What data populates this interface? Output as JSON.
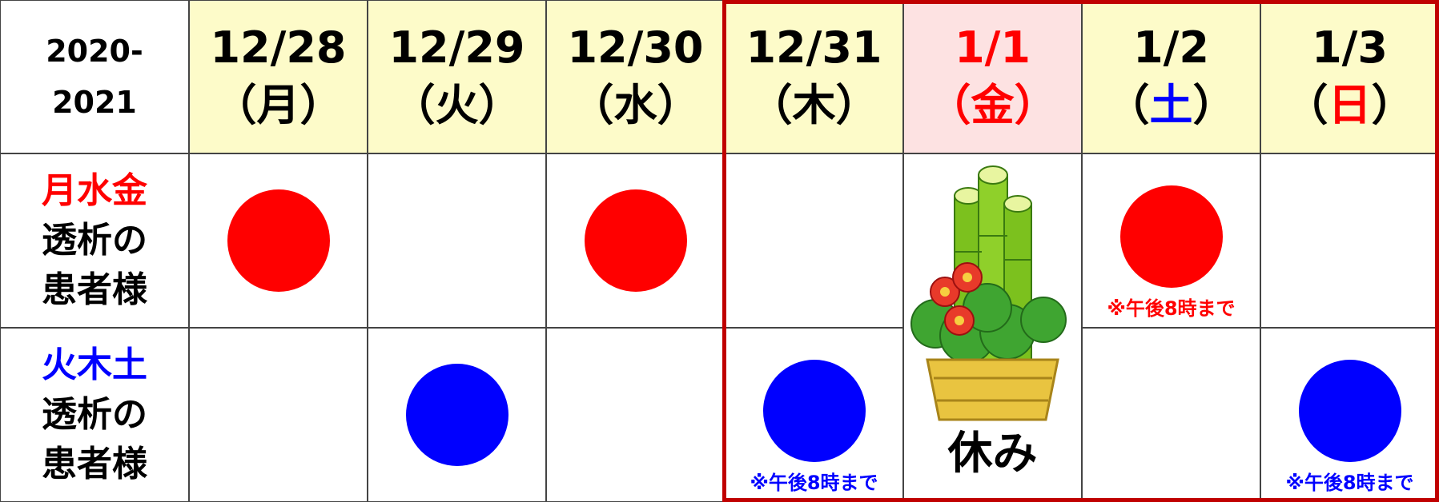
{
  "header": {
    "corner": [
      "2020-",
      "2021"
    ]
  },
  "columns": [
    {
      "date": "12/28",
      "weekday": "（月）",
      "background": "#fdfbc9",
      "date_color": "#000000",
      "weekday_color": "#000000",
      "highlight": false,
      "closed": false
    },
    {
      "date": "12/29",
      "weekday": "（火）",
      "background": "#fdfbc9",
      "date_color": "#000000",
      "weekday_color": "#000000",
      "highlight": false,
      "closed": false
    },
    {
      "date": "12/30",
      "weekday": "（水）",
      "background": "#fdfbc9",
      "date_color": "#000000",
      "weekday_color": "#000000",
      "highlight": false,
      "closed": false
    },
    {
      "date": "12/31",
      "weekday": "（木）",
      "background": "#fdfbc9",
      "date_color": "#000000",
      "weekday_color": "#000000",
      "highlight": true,
      "closed": false
    },
    {
      "date": "1/1",
      "weekday": "（金）",
      "background": "#fde2e2",
      "date_color": "#ff0000",
      "weekday_color": "#ff0000",
      "highlight": true,
      "closed": true
    },
    {
      "date": "1/2",
      "weekday": "（土）",
      "background": "#fdfbc9",
      "date_color": "#000000",
      "weekday_color": "#0000ff",
      "highlight": true,
      "closed": false
    },
    {
      "date": "1/3",
      "weekday": "（日）",
      "background": "#fdfbc9",
      "date_color": "#000000",
      "weekday_color": "#ff0000",
      "highlight": true,
      "closed": false
    }
  ],
  "rows": [
    {
      "label": [
        "月水金",
        "透析の",
        "患者様"
      ],
      "color": "#ff0000",
      "cells": [
        true,
        false,
        true,
        false,
        false,
        true,
        false
      ],
      "notes": [
        null,
        null,
        null,
        null,
        null,
        "※午後8時まで",
        null
      ]
    },
    {
      "label": [
        "火木土",
        "透析の",
        "患者様"
      ],
      "color": "#0000ff",
      "cells": [
        false,
        true,
        false,
        true,
        false,
        false,
        true
      ],
      "notes": [
        null,
        null,
        null,
        "※午後8時まで",
        null,
        null,
        "※午後8時まで"
      ]
    }
  ],
  "holiday_label": "休み",
  "highlight_color": "#c00000"
}
